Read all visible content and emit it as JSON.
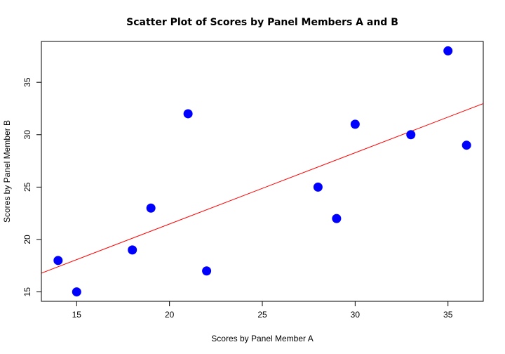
{
  "chart_data": {
    "type": "scatter",
    "title": "Scatter Plot of Scores by Panel Members A and B",
    "xlabel": "Scores by Panel Member A",
    "ylabel": "Scores by Panel Member B",
    "xlim": [
      13.1,
      36.9
    ],
    "ylim": [
      14.1,
      38.9
    ],
    "xticks": [
      15,
      20,
      25,
      30,
      35
    ],
    "yticks": [
      15,
      20,
      25,
      30,
      35
    ],
    "grid": false,
    "points": [
      {
        "x": 14,
        "y": 18
      },
      {
        "x": 15,
        "y": 15
      },
      {
        "x": 18,
        "y": 19
      },
      {
        "x": 19,
        "y": 23
      },
      {
        "x": 21,
        "y": 32
      },
      {
        "x": 22,
        "y": 17
      },
      {
        "x": 28,
        "y": 25
      },
      {
        "x": 29,
        "y": 22
      },
      {
        "x": 30,
        "y": 31
      },
      {
        "x": 33,
        "y": 30
      },
      {
        "x": 35,
        "y": 38
      },
      {
        "x": 36,
        "y": 29
      }
    ],
    "point_color": "#0000ff",
    "regression_line": {
      "intercept": 7.88,
      "slope": 0.68,
      "color": "#ff0000"
    }
  }
}
